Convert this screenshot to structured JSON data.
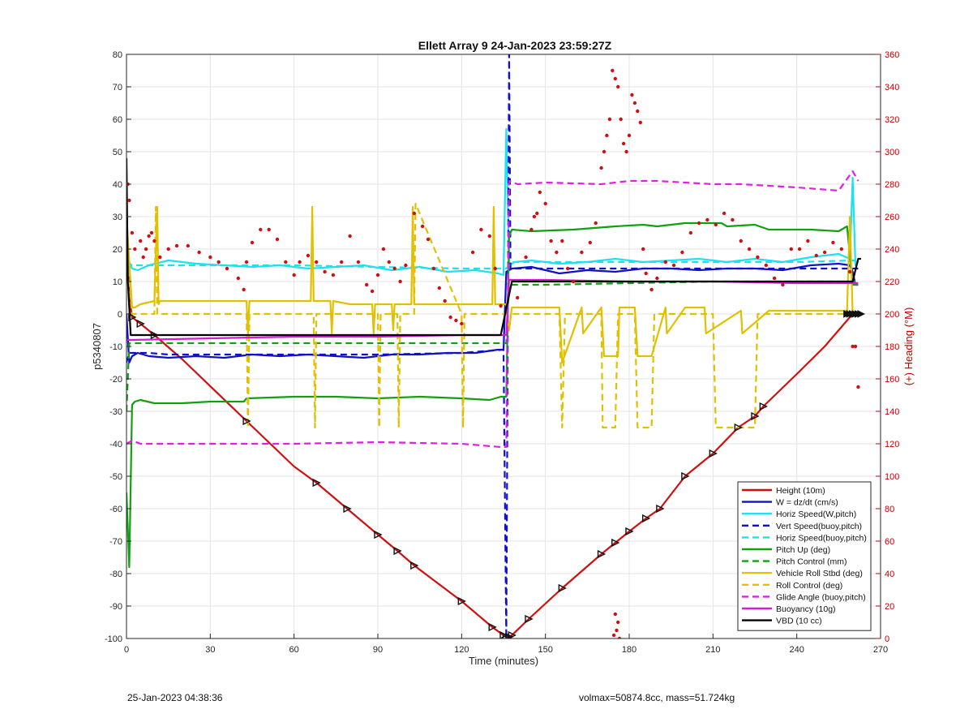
{
  "footer": {
    "left": "25-Jan-2023 04:38:36",
    "right": "volmax=50874.8cc, mass=51.724kg"
  },
  "chart_data": {
    "type": "line",
    "title": "Ellett Array 9 24-Jan-2023 23:59:27Z",
    "xlabel": "Time (minutes)",
    "ylabel": "p5340807",
    "y2label": "(+) Heading (°M)",
    "xlim": [
      0,
      270
    ],
    "ylim": [
      -100,
      80
    ],
    "y2lim": [
      0,
      360
    ],
    "xticks": [
      "0",
      "30",
      "60",
      "90",
      "120",
      "150",
      "180",
      "210",
      "240",
      "270"
    ],
    "yticks": [
      "80",
      "70",
      "60",
      "50",
      "40",
      "30",
      "20",
      "10",
      "0",
      "-10",
      "-20",
      "-30",
      "-40",
      "-50",
      "-60",
      "-70",
      "-80",
      "-90",
      "-100"
    ],
    "y2ticks": [
      "360",
      "340",
      "320",
      "300",
      "280",
      "260",
      "240",
      "220",
      "200",
      "180",
      "160",
      "140",
      "120",
      "100",
      "80",
      "60",
      "40",
      "20",
      "0"
    ],
    "grid": true,
    "legend_position": "bottom-right",
    "series": [
      {
        "name": "Height (10m)",
        "color": "#d01010",
        "dash": "solid",
        "x": [
          0,
          1,
          2,
          5,
          10,
          20,
          43,
          60,
          68,
          79,
          90,
          97,
          103,
          120,
          131,
          135,
          136,
          137,
          138,
          144,
          156,
          170,
          175,
          180,
          186,
          191,
          200,
          210,
          219,
          225,
          228,
          240,
          250,
          259,
          261,
          263
        ],
        "y": [
          30,
          5,
          -1,
          -3,
          -6.5,
          -14,
          -33,
          -47,
          -52,
          -60,
          -68,
          -73,
          -77.5,
          -88.5,
          -96.5,
          -99,
          -99.5,
          -99.5,
          -99,
          -94,
          -84.5,
          -74,
          -70.5,
          -67,
          -63,
          -60,
          -50,
          -43,
          -35,
          -31.5,
          -28.5,
          -18.5,
          -10,
          -1,
          0,
          0
        ]
      },
      {
        "name": "W = dz/dt (cm/s)",
        "color": "#1010c8",
        "dash": "solid",
        "x": [
          0,
          1,
          2,
          4,
          8,
          15,
          25,
          35,
          45,
          55,
          65,
          75,
          85,
          95,
          105,
          115,
          125,
          133,
          135,
          136,
          138,
          145,
          155,
          165,
          175,
          185,
          195,
          205,
          215,
          225,
          235,
          245,
          255,
          259,
          260,
          261,
          262
        ],
        "y": [
          0,
          -15,
          -13,
          -12,
          -13,
          -13.5,
          -13,
          -13.5,
          -12.5,
          -13,
          -12.5,
          -13,
          -13.5,
          -12.5,
          -12.5,
          -12,
          -12,
          -11,
          -11,
          13,
          14,
          14.5,
          12.5,
          13.5,
          13,
          14,
          14,
          13.5,
          14,
          14,
          13.5,
          15,
          15.5,
          15,
          13,
          9,
          9
        ]
      },
      {
        "name": "Horiz Speed(W,pitch)",
        "color": "#20e0f0",
        "dash": "solid",
        "x": [
          0,
          1,
          2,
          4,
          8,
          15,
          25,
          35,
          45,
          55,
          65,
          75,
          85,
          95,
          105,
          115,
          125,
          133,
          135,
          136,
          137,
          139,
          145,
          155,
          165,
          175,
          185,
          195,
          205,
          215,
          225,
          235,
          245,
          255,
          259,
          260,
          261,
          262
        ],
        "y": [
          10,
          16,
          14,
          13.5,
          15,
          16.5,
          15.5,
          15,
          14.5,
          15,
          14,
          14.5,
          15,
          13.5,
          14.5,
          13,
          13.5,
          12.5,
          12,
          57,
          15,
          16,
          16.5,
          15.5,
          16,
          17,
          16,
          16.5,
          17,
          16,
          17,
          16,
          17.5,
          18.5,
          17,
          42,
          15,
          16
        ]
      },
      {
        "name": "Vert Speed(buoy,pitch)",
        "color": "#1010c8",
        "dash": "dashed",
        "x": [
          0,
          1,
          2,
          4,
          8,
          15,
          30,
          60,
          90,
          120,
          135,
          136,
          137,
          137.5,
          150,
          180,
          210,
          240,
          260,
          262
        ],
        "y": [
          -15,
          -12,
          -12,
          -12,
          -12,
          -12.5,
          -12.5,
          -12.5,
          -12.5,
          -12,
          -11,
          -100,
          80,
          14,
          14,
          14,
          14,
          14,
          14,
          14
        ]
      },
      {
        "name": "Horiz Speed(buoy,pitch)",
        "color": "#20e0f0",
        "dash": "dashed",
        "x": [
          0,
          2,
          10,
          30,
          60,
          90,
          120,
          136,
          138,
          150,
          180,
          210,
          240,
          260,
          262
        ],
        "y": [
          16,
          15,
          15,
          15,
          15,
          14.5,
          14,
          14,
          16,
          16,
          16,
          16,
          16,
          16.5,
          16.5
        ]
      },
      {
        "name": "Pitch Up (deg)",
        "color": "#10a010",
        "dash": "solid",
        "x": [
          0,
          1,
          2,
          3,
          5,
          10,
          20,
          30,
          42,
          43,
          60,
          75,
          90,
          105,
          120,
          130,
          134,
          136,
          137,
          138,
          145,
          160,
          175,
          185,
          190,
          200,
          213,
          215,
          225,
          230,
          245,
          255,
          258,
          260,
          262
        ],
        "y": [
          -55,
          -78,
          -28,
          -27,
          -26.5,
          -27.5,
          -27.5,
          -27,
          -27,
          -26,
          -25.5,
          -25.5,
          -26,
          -25.5,
          -26,
          -26.5,
          -25.5,
          -25.5,
          24,
          26,
          25.5,
          26,
          27,
          27.5,
          27,
          28,
          28,
          27,
          27.5,
          26,
          26,
          25.5,
          27,
          9,
          9
        ]
      },
      {
        "name": "Pitch Control (mm)",
        "color": "#10a010",
        "dash": "dashed",
        "x": [
          0,
          1,
          2,
          5,
          30,
          60,
          90,
          120,
          135,
          136,
          137,
          150,
          180,
          210,
          240,
          260,
          262
        ],
        "y": [
          -30,
          -9,
          -9,
          -9,
          -9,
          -9,
          -9,
          -9,
          -9,
          -9,
          9,
          9,
          9.5,
          10,
          10,
          10,
          10
        ]
      },
      {
        "name": "Vehicle Roll Stbd (deg)",
        "color": "#e0c000",
        "dash": "solid",
        "x": [
          0,
          2,
          3,
          5,
          10,
          11,
          11.5,
          12,
          30,
          42,
          43,
          43.5,
          44,
          60,
          66,
          66.5,
          67,
          73,
          73.5,
          74,
          80,
          88,
          88.5,
          89,
          95,
          95.5,
          96,
          102,
          102.5,
          103,
          120,
          131,
          131.5,
          132,
          136,
          137,
          138,
          145,
          155,
          156,
          163,
          163.5,
          170,
          171,
          176,
          176.5,
          182,
          183,
          188,
          193,
          193.5,
          200,
          207,
          207.5,
          220,
          220.5,
          230,
          250,
          258,
          259,
          260,
          262
        ],
        "y": [
          30,
          2,
          2,
          3,
          4,
          33,
          3,
          4,
          4,
          4,
          4,
          -6,
          4,
          4,
          4,
          33,
          4,
          4,
          -6,
          4,
          3,
          3,
          -6,
          3,
          3,
          -5,
          3,
          3,
          33,
          3,
          3,
          3,
          33,
          3,
          3,
          -5,
          2,
          2,
          2,
          -15,
          2,
          -6,
          2,
          -13,
          -13,
          2,
          2,
          -13,
          -13,
          2,
          -6,
          2,
          2,
          -6,
          1,
          -6,
          1,
          1,
          1,
          30,
          0,
          0
        ]
      },
      {
        "name": "Roll Control (deg)",
        "color": "#e0c000",
        "dash": "dashed",
        "x": [
          0,
          2,
          5,
          10,
          10.5,
          11,
          43,
          43.5,
          44,
          67,
          67.5,
          68,
          90,
          90.5,
          91,
          97,
          97.5,
          98,
          103,
          103.5,
          120,
          120.5,
          121,
          137,
          138,
          145,
          155,
          156,
          157,
          170,
          170.5,
          175,
          176,
          182,
          183,
          188,
          189,
          210,
          211,
          225,
          226,
          260,
          262
        ],
        "y": [
          20,
          0,
          0,
          0,
          33,
          0,
          0,
          -35,
          0,
          0,
          -35,
          0,
          0,
          -35,
          0,
          0,
          -35,
          0,
          0,
          34,
          0,
          -35,
          0,
          0,
          0,
          0,
          0,
          -35,
          0,
          0,
          -35,
          -35,
          0,
          0,
          -35,
          -35,
          0,
          0,
          -35,
          -35,
          0,
          0,
          0
        ]
      },
      {
        "name": "Glide Angle (buoy,pitch)",
        "color": "#e020e0",
        "dash": "dashed",
        "x": [
          0,
          2,
          5,
          10,
          30,
          60,
          90,
          120,
          134,
          136,
          137,
          140,
          150,
          170,
          180,
          190,
          200,
          210,
          220,
          240,
          255,
          260,
          262
        ],
        "y": [
          -40,
          -39,
          -40,
          -40,
          -40,
          -40,
          -39.5,
          -40,
          -41,
          -41,
          41,
          40,
          40.5,
          40,
          41,
          41,
          40.5,
          40,
          40,
          39,
          38,
          44,
          41
        ]
      },
      {
        "name": "Buoyancy (10g)",
        "color": "#d020d0",
        "dash": "solid",
        "x": [
          0,
          2,
          30,
          60,
          90,
          120,
          135,
          136,
          137,
          150,
          180,
          210,
          240,
          258,
          262
        ],
        "y": [
          -8,
          -8,
          -7.5,
          -7,
          -7,
          -6.5,
          -6.5,
          -6.5,
          10.5,
          10.5,
          10,
          10,
          9.5,
          9.5,
          9.5
        ]
      },
      {
        "name": "VBD (10 cc)",
        "color": "#000000",
        "dash": "solid",
        "x": [
          0,
          0.5,
          1.5,
          2,
          10,
          60,
          120,
          134,
          138,
          150,
          180,
          210,
          240,
          258,
          260,
          262,
          263
        ],
        "y": [
          48,
          10,
          -6.5,
          -6.5,
          -6.5,
          -6.5,
          -6.5,
          -6.5,
          10,
          10,
          10,
          10,
          10,
          10,
          10,
          17,
          17
        ]
      }
    ],
    "heading_points": {
      "name": "Heading",
      "color": "#d01010",
      "axis": "right",
      "x": [
        0.5,
        1,
        2,
        3,
        5,
        6,
        7,
        8,
        9,
        10,
        12,
        15,
        18,
        22,
        26,
        30,
        33,
        36,
        40,
        42,
        43,
        45,
        48,
        51,
        54,
        57,
        60,
        62,
        65,
        68,
        71,
        74,
        77,
        80,
        83,
        86,
        88,
        90,
        92,
        94,
        96,
        98,
        100,
        103,
        106,
        108,
        110,
        112,
        114,
        116,
        118,
        120,
        124,
        127,
        130,
        132,
        134,
        140,
        143,
        145,
        146,
        147,
        148,
        150,
        152,
        154,
        156,
        158,
        160,
        163,
        166,
        168,
        170,
        171,
        172,
        173,
        174,
        175,
        176,
        177,
        178,
        179,
        180,
        181,
        182,
        183,
        184,
        185,
        186,
        188,
        190,
        193,
        196,
        199,
        202,
        205,
        208,
        211,
        214,
        217,
        220,
        223,
        226,
        229,
        232,
        235,
        238,
        241,
        244,
        247,
        250,
        253,
        256,
        259,
        260,
        261,
        262,
        175,
        176,
        175.5,
        176.5,
        174.5
      ],
      "y": [
        280,
        270,
        250,
        240,
        245,
        235,
        240,
        248,
        250,
        245,
        235,
        240,
        242,
        242,
        238,
        235,
        232,
        228,
        222,
        215,
        232,
        244,
        252,
        252,
        246,
        232,
        224,
        232,
        236,
        232,
        226,
        224,
        232,
        248,
        232,
        218,
        214,
        224,
        240,
        232,
        228,
        220,
        230,
        262,
        254,
        246,
        228,
        216,
        208,
        198,
        196,
        194,
        238,
        252,
        248,
        228,
        205,
        210,
        235,
        252,
        260,
        262,
        275,
        268,
        245,
        238,
        245,
        228,
        220,
        238,
        244,
        256,
        290,
        300,
        310,
        320,
        350,
        345,
        340,
        320,
        305,
        300,
        310,
        335,
        330,
        325,
        318,
        240,
        225,
        215,
        222,
        232,
        230,
        238,
        250,
        256,
        258,
        255,
        262,
        258,
        245,
        240,
        235,
        230,
        222,
        218,
        240,
        240,
        245,
        236,
        238,
        244,
        240,
        226,
        180,
        180,
        155,
        15,
        10,
        5,
        0,
        2
      ]
    },
    "triangle_markers": {
      "x": [
        2,
        5,
        10,
        43,
        68,
        79,
        90,
        97,
        103,
        120,
        131,
        135,
        136,
        137,
        138,
        144,
        156,
        170,
        175,
        180,
        186,
        191,
        200,
        210,
        219,
        225,
        228
      ],
      "y": [
        -1,
        -3,
        -6.5,
        -33,
        -52,
        -60,
        -68,
        -73,
        -77.5,
        -88.5,
        -96.5,
        -99,
        -99.5,
        -99.5,
        -99,
        -94,
        -84.5,
        -74,
        -70.5,
        -67,
        -63,
        -60,
        -50,
        -43,
        -35,
        -31.5,
        -28.5
      ]
    }
  }
}
